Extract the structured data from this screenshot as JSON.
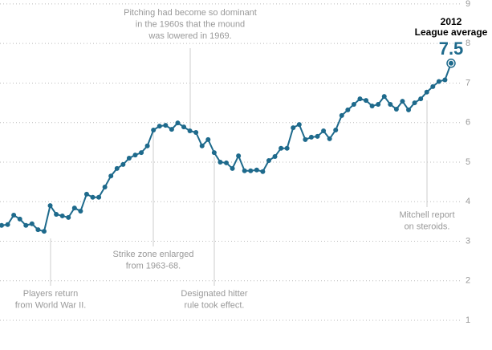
{
  "chart_data": {
    "type": "line",
    "categories": [
      null,
      null,
      null,
      null,
      null,
      null,
      null,
      null,
      null,
      null,
      null,
      null,
      null,
      null,
      null,
      null,
      null,
      null,
      null,
      null,
      null,
      null,
      null,
      null,
      null,
      null,
      null,
      null,
      null,
      null,
      null,
      null,
      null,
      null,
      null,
      null,
      null,
      null,
      null,
      null,
      null,
      null,
      null,
      null,
      null,
      null,
      null,
      null,
      null,
      null,
      null,
      null,
      null,
      null,
      null,
      null,
      null,
      null,
      null,
      null,
      null,
      null,
      null,
      null,
      null,
      null,
      null,
      null,
      null,
      null,
      null,
      null,
      null,
      null,
      "2012"
    ],
    "series": [
      {
        "name": "League average",
        "color": "#1e6a8c",
        "values": [
          3.4,
          3.42,
          3.66,
          3.56,
          3.4,
          3.44,
          3.29,
          3.25,
          3.9,
          3.68,
          3.64,
          3.6,
          3.84,
          3.76,
          4.19,
          4.11,
          4.11,
          4.37,
          4.65,
          4.84,
          4.94,
          5.1,
          5.18,
          5.24,
          5.41,
          5.81,
          5.91,
          5.93,
          5.83,
          5.99,
          5.89,
          5.79,
          5.75,
          5.41,
          5.57,
          5.24,
          5.0,
          4.98,
          4.84,
          5.16,
          4.78,
          4.78,
          4.8,
          4.76,
          5.04,
          5.14,
          5.35,
          5.35,
          5.87,
          5.95,
          5.57,
          5.63,
          5.65,
          5.79,
          5.59,
          5.81,
          6.18,
          6.32,
          6.46,
          6.6,
          6.56,
          6.42,
          6.46,
          6.66,
          6.46,
          6.34,
          6.54,
          6.32,
          6.5,
          6.6,
          6.77,
          6.91,
          7.04,
          7.08,
          7.5
        ]
      }
    ],
    "ylim": [
      0.9,
      9.1
    ],
    "yticks": [
      1,
      2,
      3,
      4,
      5,
      6,
      7,
      8,
      9
    ],
    "grid": true,
    "annotations": [
      {
        "lines": [
          "Players return",
          "from World War II."
        ]
      },
      {
        "lines": [
          "Pitching had become so dominant",
          "in the 1960s that the mound",
          "was lowered in 1969."
        ]
      },
      {
        "lines": [
          "Strike zone enlarged",
          "from 1963-68."
        ]
      },
      {
        "lines": [
          "Designated hitter",
          "rule took effect."
        ]
      },
      {
        "lines": [
          "Mitchell report",
          "on steroids."
        ]
      }
    ]
  }
}
